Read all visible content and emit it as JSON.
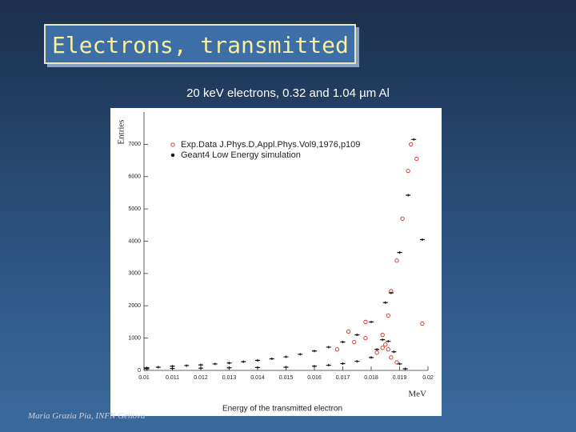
{
  "chart_data": {
    "type": "scatter",
    "title": "Electrons, transmitted",
    "subtitle": "20 keV electrons, 0.32 and 1.04 µm Al",
    "footer": "Maria Grazia Pia, INFN Genova",
    "ylabel": "Entries",
    "xlabel": "Energy of the transmitted electron",
    "xunit": "MeV",
    "xlim": [
      0.01,
      0.02
    ],
    "ylim": [
      0,
      8000
    ],
    "xticks": [
      0.01,
      0.011,
      0.012,
      0.013,
      0.014,
      0.015,
      0.016,
      0.017,
      0.018,
      0.019,
      0.02
    ],
    "yticks": [
      0,
      1000,
      2000,
      3000,
      4000,
      5000,
      6000,
      7000
    ],
    "series": [
      {
        "name": "Exp.Data J.Phys.D,Appl.Phys.Vol9,1976,p109",
        "color": "#d03020",
        "marker": "circle",
        "x": [
          0.0168,
          0.0174,
          0.0178,
          0.0172,
          0.0178,
          0.0182,
          0.0184,
          0.0185,
          0.0186,
          0.0187,
          0.0189,
          0.0191,
          0.0193,
          0.0194,
          0.0196,
          0.0198,
          0.0184,
          0.0186,
          0.0187,
          0.0189
        ],
        "y": [
          650,
          875,
          1000,
          1200,
          1500,
          550,
          1100,
          800,
          1700,
          2450,
          3400,
          4700,
          6175,
          7000,
          6550,
          1450,
          700,
          650,
          400,
          250
        ]
      },
      {
        "name": "Geant4 Low Energy simulation",
        "color": "#111111",
        "marker": "cross",
        "x": [
          0.0101,
          0.0105,
          0.011,
          0.0115,
          0.012,
          0.0125,
          0.013,
          0.0135,
          0.014,
          0.0145,
          0.015,
          0.0155,
          0.016,
          0.0165,
          0.017,
          0.0175,
          0.018,
          0.0185,
          0.0187,
          0.019,
          0.0193,
          0.0195,
          0.0198,
          0.0101,
          0.011,
          0.012,
          0.013,
          0.014,
          0.015,
          0.016,
          0.0165,
          0.017,
          0.0175,
          0.018,
          0.0182,
          0.0184,
          0.0186,
          0.0188,
          0.019,
          0.0192
        ],
        "y": [
          80,
          100,
          130,
          150,
          170,
          200,
          230,
          270,
          310,
          360,
          420,
          500,
          600,
          720,
          880,
          1100,
          1500,
          2100,
          2400,
          3650,
          5425,
          7150,
          4050,
          50,
          60,
          70,
          80,
          90,
          100,
          130,
          160,
          210,
          280,
          400,
          650,
          950,
          900,
          575,
          200,
          50
        ]
      }
    ]
  }
}
